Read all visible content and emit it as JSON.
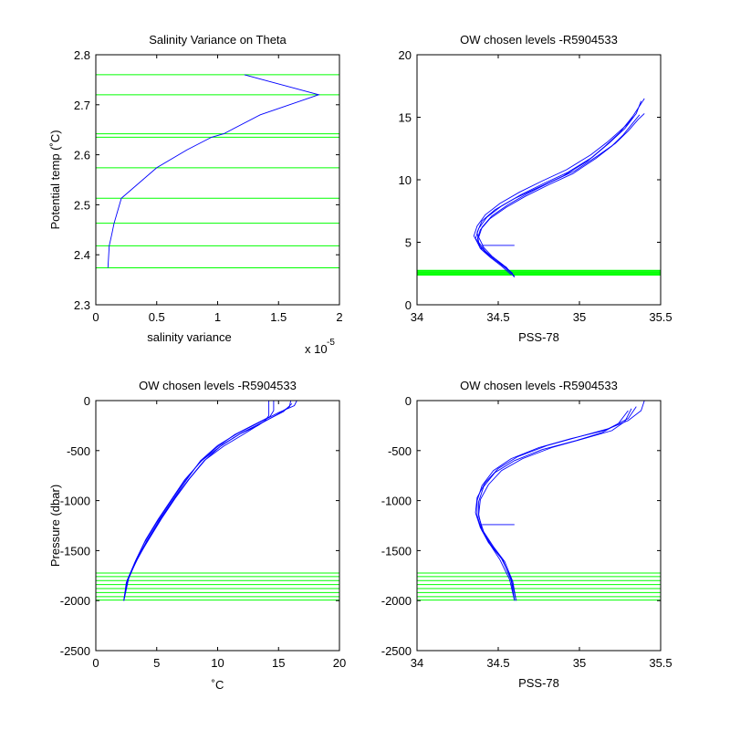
{
  "colors": {
    "profile": "#0000ff",
    "level": "#00ff00",
    "axis": "#000000",
    "background": "#ffffff"
  },
  "chart_data": [
    {
      "id": "p1",
      "type": "line",
      "title": "Salinity Variance on Theta",
      "xlabel": "salinity variance",
      "ylabel": "Potential temp (˚C)",
      "x_exponent_label": "x 10",
      "x_exponent": "-5",
      "xlim": [
        0,
        2e-05
      ],
      "ylim": [
        2.3,
        2.8
      ],
      "xticks": [
        0,
        5e-06,
        1e-05,
        1.5e-05,
        2e-05
      ],
      "xtick_labels": [
        "0",
        "0.5",
        "1",
        "1.5",
        "2"
      ],
      "yticks": [
        2.3,
        2.4,
        2.5,
        2.6,
        2.7,
        2.8
      ],
      "ytick_labels": [
        "2.3",
        "2.4",
        "2.5",
        "2.6",
        "2.7",
        "2.8"
      ],
      "grid": false,
      "hlines": [
        2.374,
        2.418,
        2.463,
        2.513,
        2.574,
        2.635,
        2.642,
        2.72,
        2.76
      ],
      "series": [
        {
          "x": [
            1e-06,
            1.1e-06,
            1.3e-06,
            1.5e-06,
            2.1e-06,
            5e-06,
            7.5e-06,
            9.5e-06,
            1.05e-05,
            1.35e-05,
            1.83e-05,
            1.22e-05
          ],
          "y": [
            2.374,
            2.418,
            2.44,
            2.463,
            2.513,
            2.574,
            2.61,
            2.635,
            2.642,
            2.68,
            2.72,
            2.76
          ]
        }
      ]
    },
    {
      "id": "p2",
      "type": "line",
      "title": "OW chosen levels -R5904533",
      "xlabel": "PSS-78",
      "ylabel": "",
      "xlim": [
        34,
        35.5
      ],
      "ylim": [
        0,
        20
      ],
      "xticks": [
        34,
        34.5,
        35,
        35.5
      ],
      "xtick_labels": [
        "34",
        "34.5",
        "35",
        "35.5"
      ],
      "yticks": [
        0,
        5,
        10,
        15,
        20
      ],
      "ytick_labels": [
        "0",
        "5",
        "10",
        "15",
        "20"
      ],
      "grid": false,
      "hlines": [
        2.374,
        2.418,
        2.463,
        2.513,
        2.574,
        2.635,
        2.642,
        2.72,
        2.76
      ],
      "series": [
        {
          "x": [
            34.6,
            34.55,
            34.48,
            34.42,
            34.38,
            34.37,
            34.4,
            34.48,
            34.6,
            34.75,
            34.9,
            35.05,
            35.15,
            35.25,
            35.33,
            35.4
          ],
          "y": [
            2.2,
            3.0,
            3.6,
            4.3,
            5.0,
            5.8,
            6.7,
            7.6,
            8.5,
            9.4,
            10.3,
            11.5,
            12.6,
            13.8,
            15.1,
            16.5
          ]
        },
        {
          "x": [
            34.58,
            34.52,
            34.45,
            34.39,
            34.36,
            34.38,
            34.43,
            34.52,
            34.64,
            34.78,
            34.93,
            35.08,
            35.18,
            35.28,
            35.35,
            35.38
          ],
          "y": [
            2.4,
            3.1,
            3.8,
            4.5,
            5.3,
            6.1,
            7.0,
            7.9,
            8.8,
            9.7,
            10.6,
            11.8,
            12.9,
            14.1,
            15.3,
            16.3
          ]
        },
        {
          "x": [
            34.6,
            34.54,
            34.47,
            34.4,
            34.37,
            34.39,
            34.45,
            34.55,
            34.67,
            34.81,
            34.96,
            35.1,
            35.2,
            35.27,
            35.32,
            35.37
          ],
          "y": [
            2.3,
            3.0,
            3.7,
            4.4,
            5.2,
            6.0,
            6.9,
            7.8,
            8.7,
            9.6,
            10.5,
            11.7,
            12.7,
            13.6,
            14.4,
            15.2
          ]
        },
        {
          "x": [
            34.59,
            34.53,
            34.46,
            34.41,
            34.38,
            34.4,
            34.46,
            34.56,
            34.68,
            34.82,
            34.97,
            35.11,
            35.22,
            35.3,
            35.36,
            35.4
          ],
          "y": [
            2.5,
            3.2,
            3.9,
            4.6,
            5.4,
            6.2,
            7.1,
            8.0,
            8.9,
            9.8,
            10.7,
            11.9,
            12.9,
            13.9,
            14.8,
            15.3
          ]
        },
        {
          "x": [
            34.58,
            34.51,
            34.44,
            34.38,
            34.35,
            34.37,
            34.42,
            34.51,
            34.63,
            34.77,
            34.92,
            35.07,
            35.17,
            35.24,
            35.3,
            35.33
          ],
          "y": [
            2.6,
            3.3,
            4.0,
            4.8,
            5.5,
            6.3,
            7.2,
            8.1,
            9.0,
            9.9,
            10.8,
            12.0,
            13.0,
            13.8,
            14.5,
            15.0
          ]
        },
        {
          "x": [
            34.4,
            34.6
          ],
          "y": [
            4.75,
            4.75
          ]
        }
      ]
    },
    {
      "id": "p3",
      "type": "line",
      "title": "OW chosen levels -R5904533",
      "xlabel": "˚C",
      "ylabel": "Pressure (dbar)",
      "xlim": [
        0,
        20
      ],
      "ylim": [
        -2500,
        0
      ],
      "xticks": [
        0,
        5,
        10,
        15,
        20
      ],
      "xtick_labels": [
        "0",
        "5",
        "10",
        "15",
        "20"
      ],
      "yticks": [
        -2500,
        -2000,
        -1500,
        -1000,
        -500,
        0
      ],
      "ytick_labels": [
        "-2500",
        "-2000",
        "-1500",
        "-1000",
        "-500",
        "0"
      ],
      "grid": false,
      "hlines": [
        -1725,
        -1760,
        -1800,
        -1840,
        -1880,
        -1920,
        -1960,
        -1995
      ],
      "series": [
        {
          "x": [
            2.3,
            2.6,
            3.3,
            4.2,
            5.2,
            6.3,
            7.4,
            8.6,
            10.0,
            11.6,
            13.4,
            15.0,
            16.3,
            16.5
          ],
          "y": [
            -2000,
            -1800,
            -1600,
            -1400,
            -1200,
            -1000,
            -800,
            -600,
            -450,
            -330,
            -220,
            -120,
            -50,
            0
          ]
        },
        {
          "x": [
            2.3,
            2.7,
            3.4,
            4.4,
            5.4,
            6.5,
            7.7,
            9.0,
            10.4,
            12.0,
            13.8,
            15.4,
            16.1
          ],
          "y": [
            -2000,
            -1780,
            -1580,
            -1380,
            -1180,
            -980,
            -780,
            -590,
            -440,
            -320,
            -210,
            -110,
            -30
          ]
        },
        {
          "x": [
            2.3,
            2.5,
            3.2,
            4.0,
            5.0,
            6.1,
            7.2,
            8.5,
            9.9,
            11.4,
            13.0,
            14.3,
            14.6,
            14.6
          ],
          "y": [
            -2000,
            -1820,
            -1620,
            -1420,
            -1220,
            -1020,
            -820,
            -620,
            -470,
            -340,
            -240,
            -160,
            -100,
            0
          ]
        },
        {
          "x": [
            2.3,
            2.6,
            3.3,
            4.1,
            5.1,
            6.2,
            7.3,
            8.7,
            10.2,
            11.8,
            13.3,
            13.9,
            14.2,
            14.2
          ],
          "y": [
            -2000,
            -1790,
            -1590,
            -1390,
            -1190,
            -990,
            -790,
            -600,
            -460,
            -335,
            -250,
            -200,
            -150,
            0
          ]
        },
        {
          "x": [
            2.3,
            2.6,
            3.4,
            4.3,
            5.3,
            6.4,
            7.6,
            8.9,
            10.5,
            12.2,
            13.6,
            14.9,
            15.9,
            16.0
          ],
          "y": [
            -2000,
            -1790,
            -1590,
            -1390,
            -1190,
            -990,
            -790,
            -600,
            -455,
            -330,
            -225,
            -140,
            -60,
            0
          ]
        }
      ]
    },
    {
      "id": "p4",
      "type": "line",
      "title": "OW chosen levels -R5904533",
      "xlabel": "PSS-78",
      "ylabel": "",
      "xlim": [
        34,
        35.5
      ],
      "ylim": [
        -2500,
        0
      ],
      "xticks": [
        34,
        34.5,
        35,
        35.5
      ],
      "xtick_labels": [
        "34",
        "34.5",
        "35",
        "35.5"
      ],
      "yticks": [
        -2500,
        -2000,
        -1500,
        -1000,
        -500,
        0
      ],
      "ytick_labels": [
        "-2500",
        "-2000",
        "-1500",
        "-1000",
        "-500",
        "0"
      ],
      "grid": false,
      "hlines": [
        -1725,
        -1760,
        -1800,
        -1840,
        -1880,
        -1920,
        -1960,
        -1995
      ],
      "series": [
        {
          "x": [
            34.6,
            34.58,
            34.53,
            34.46,
            34.4,
            34.37,
            34.37,
            34.4,
            34.47,
            34.58,
            34.75,
            34.95,
            35.15,
            35.3,
            35.38,
            35.4
          ],
          "y": [
            -2000,
            -1800,
            -1600,
            -1450,
            -1300,
            -1150,
            -1000,
            -850,
            -700,
            -580,
            -470,
            -380,
            -300,
            -200,
            -100,
            0
          ]
        },
        {
          "x": [
            34.61,
            34.58,
            34.52,
            34.44,
            34.39,
            34.36,
            34.37,
            34.42,
            34.5,
            34.62,
            34.8,
            35.0,
            35.18,
            35.3,
            35.35
          ],
          "y": [
            -2000,
            -1780,
            -1580,
            -1420,
            -1270,
            -1120,
            -970,
            -820,
            -680,
            -560,
            -450,
            -360,
            -280,
            -180,
            -60
          ]
        },
        {
          "x": [
            34.6,
            34.57,
            34.51,
            34.45,
            34.4,
            34.38,
            34.39,
            34.44,
            34.52,
            34.65,
            34.83,
            35.03,
            35.2,
            35.28,
            35.32
          ],
          "y": [
            -2000,
            -1790,
            -1590,
            -1440,
            -1290,
            -1140,
            -990,
            -840,
            -700,
            -580,
            -470,
            -380,
            -300,
            -210,
            -80
          ]
        },
        {
          "x": [
            34.61,
            34.59,
            34.54,
            34.47,
            34.41,
            34.38,
            34.38,
            34.41,
            34.48,
            34.6,
            34.77,
            34.98,
            35.14,
            35.24,
            35.3
          ],
          "y": [
            -2000,
            -1810,
            -1610,
            -1460,
            -1310,
            -1160,
            -1010,
            -860,
            -720,
            -600,
            -490,
            -400,
            -320,
            -230,
            -100
          ]
        },
        {
          "x": [
            34.4,
            34.6
          ],
          "y": [
            -1240,
            -1240
          ]
        }
      ]
    }
  ]
}
